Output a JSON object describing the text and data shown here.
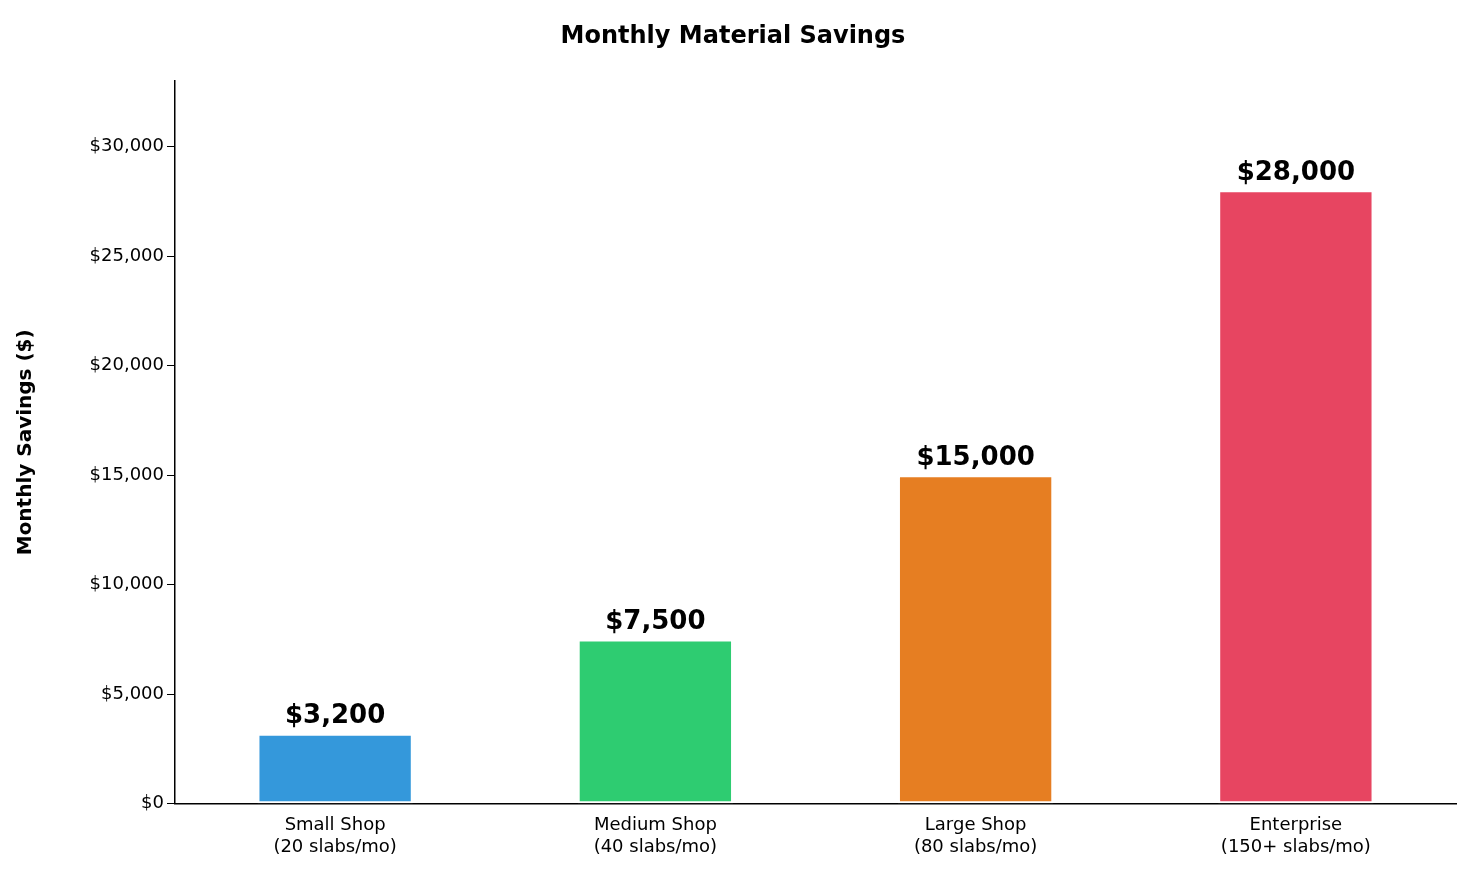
{
  "chart_data": {
    "type": "bar",
    "title": "Monthly Material Savings",
    "ylabel": "Monthly Savings ($)",
    "categories": [
      "Small Shop\n(20 slabs/mo)",
      "Medium Shop\n(40 slabs/mo)",
      "Large Shop\n(80 slabs/mo)",
      "Enterprise\n(150+ slabs/mo)"
    ],
    "values": [
      3200,
      7500,
      15000,
      28000
    ],
    "colors": [
      "#3498db",
      "#2ecc71",
      "#e67e22",
      "#e74561"
    ],
    "value_labels": [
      "$3,200",
      "$7,500",
      "$15,000",
      "$28,000"
    ],
    "ylim": [
      0,
      33000
    ],
    "yticks": [
      {
        "value": 0,
        "label": "$0"
      },
      {
        "value": 5000,
        "label": "$5,000"
      },
      {
        "value": 10000,
        "label": "$10,000"
      },
      {
        "value": 15000,
        "label": "$15,000"
      },
      {
        "value": 20000,
        "label": "$20,000"
      },
      {
        "value": 25000,
        "label": "$25,000"
      },
      {
        "value": 30000,
        "label": "$30,000"
      }
    ],
    "grid": false,
    "legend": false
  }
}
